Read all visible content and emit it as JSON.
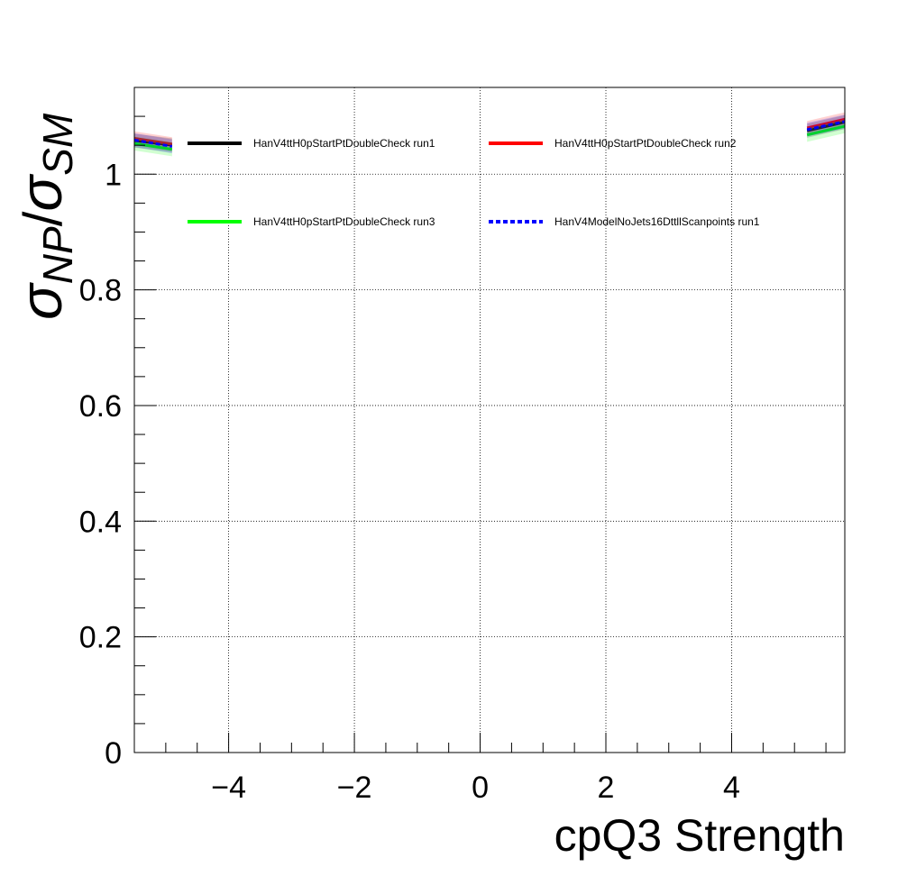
{
  "chart_data": {
    "type": "line",
    "title": "",
    "xlabel": "cpQ3 Strength",
    "ylabel": {
      "sigma": "σ",
      "num_sub": "NP",
      "slash": "/",
      "den_sub": "SM"
    },
    "xlim": [
      -5.5,
      5.8
    ],
    "ylim": [
      0,
      1.15
    ],
    "xticks": [
      -4,
      -2,
      0,
      2,
      4
    ],
    "xtick_labels": [
      "−4",
      "−2",
      "0",
      "2",
      "4"
    ],
    "yticks": [
      0,
      0.2,
      0.4,
      0.6,
      0.8,
      1
    ],
    "ytick_labels": [
      "0",
      "0.2",
      "0.4",
      "0.6",
      "0.8",
      "1"
    ],
    "grid": true,
    "legend_position": "top",
    "series": [
      {
        "name": "HanV4ttH0pStartPtDoubleCheck run1",
        "color": "#000000",
        "style": "solid",
        "segments": [
          [
            [
              -5.5,
              1.058
            ],
            [
              -4.9,
              1.05
            ]
          ],
          [
            [
              5.2,
              1.075
            ],
            [
              5.8,
              1.09
            ]
          ]
        ]
      },
      {
        "name": "HanV4ttH0pStartPtDoubleCheck run2",
        "color": "#ff0000",
        "style": "solid",
        "segments": [
          [
            [
              -5.5,
              1.062
            ],
            [
              -4.9,
              1.052
            ]
          ],
          [
            [
              5.2,
              1.08
            ],
            [
              5.8,
              1.095
            ]
          ]
        ]
      },
      {
        "name": "HanV4ttH0pStartPtDoubleCheck run3",
        "color": "#00ff00",
        "style": "solid",
        "segments": [
          [
            [
              -5.5,
              1.053
            ],
            [
              -4.9,
              1.043
            ]
          ],
          [
            [
              5.2,
              1.068
            ],
            [
              5.8,
              1.083
            ]
          ]
        ]
      },
      {
        "name": "HanV4ModelNoJets16DttllScanpoints run1",
        "color": "#0000ff",
        "style": "dashed",
        "segments": [
          [
            [
              -5.5,
              1.059
            ],
            [
              -4.9,
              1.048
            ]
          ],
          [
            [
              5.2,
              1.077
            ],
            [
              5.8,
              1.091
            ]
          ]
        ]
      }
    ]
  }
}
